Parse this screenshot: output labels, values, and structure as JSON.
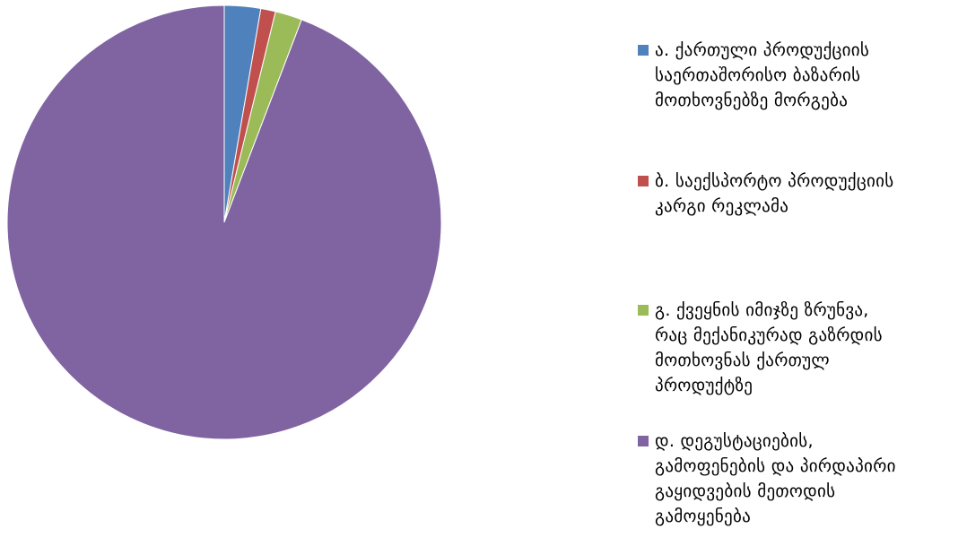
{
  "chart_data": {
    "type": "pie",
    "title": "",
    "start_angle_deg": 0,
    "direction": "clockwise",
    "categories": [
      "ა. ქართული პროდუქციის საერთაშორისო ბაზარის მოთხოვნებზე მორგება",
      "ბ. საექსპორტო პროდუქციის კარგი რეკლამა",
      "გ. ქვეყნის იმიჯზე ზრუნვა, რაც მექანიკურად გაზრდის მოთხოვნას ქართულ პროდუქტზე",
      "დ. დეგუსტაციების, გამოფენების და პირდაპირი გაყიდვების მეთოდის გამოყენება"
    ],
    "values": [
      2.7,
      1.1,
      2.0,
      94.2
    ],
    "unit": "%",
    "colors": [
      "#4F81BD",
      "#C0504D",
      "#9BBB59",
      "#8064A2"
    ],
    "legend": {
      "position": "right",
      "entries": [
        {
          "lines": [
            "ა. ქართული პროდუქციის",
            "საერთაშორისო ბაზარის",
            "მოთხოვნებზე მორგება"
          ]
        },
        {
          "lines": [
            "ბ. საექსპორტო პროდუქციის",
            "კარგი რეკლამა"
          ]
        },
        {
          "lines": [
            "გ. ქვეყნის იმიჯზე ზრუნვა,",
            "რაც მექანიკურად გაზრდის",
            "მოთხოვნას ქართულ",
            "პროდუქტზე"
          ]
        },
        {
          "lines": [
            "დ. დეგუსტაციების,",
            "გამოფენების და პირდაპირი",
            "გაყიდვების მეთოდის",
            "გამოყენება"
          ]
        }
      ]
    }
  }
}
